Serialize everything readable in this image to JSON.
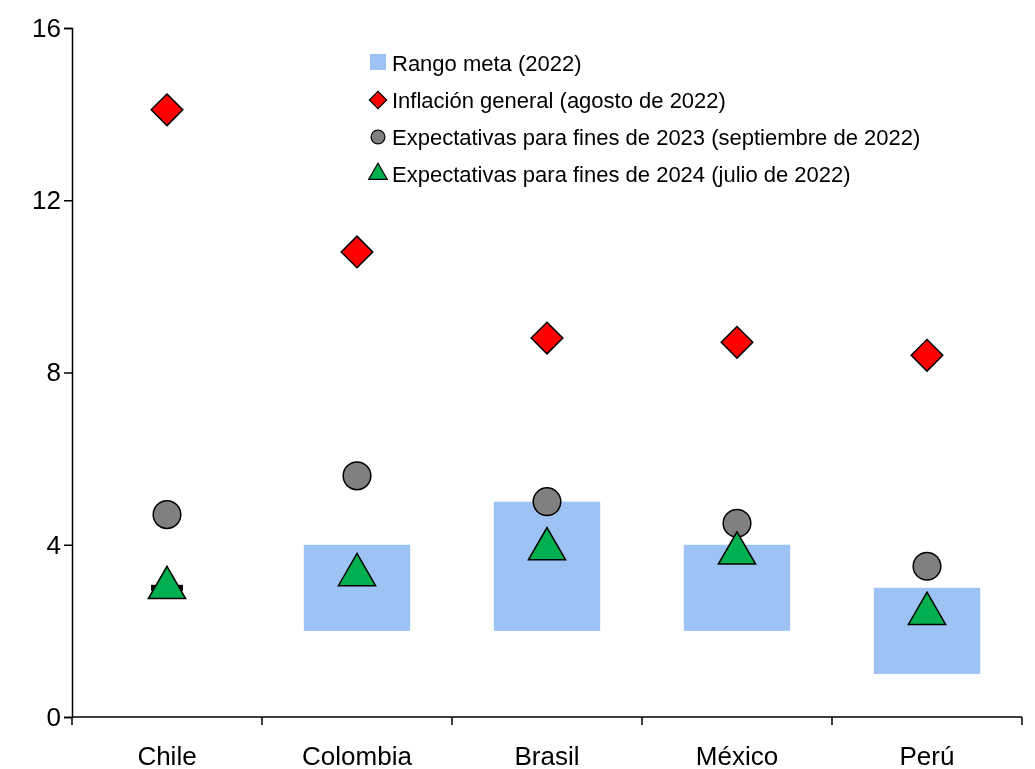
{
  "chart_data": {
    "type": "scatter",
    "categories": [
      "Chile",
      "Colombia",
      "Brasil",
      "México",
      "Perú"
    ],
    "ylim": [
      0,
      16
    ],
    "yticks": [
      0,
      4,
      8,
      12,
      16
    ],
    "grid": false,
    "legend": "top right",
    "series": [
      {
        "name": "Rango meta (2022)",
        "type": "bar",
        "color": "#9dc3f5",
        "colors": [
          "#000000",
          "#9dc3f5",
          "#9dc3f5",
          "#9dc3f5",
          "#9dc3f5"
        ],
        "base": [
          3,
          2,
          2,
          2,
          1
        ],
        "values": [
          0,
          2,
          3,
          2,
          2
        ]
      },
      {
        "name": "Inflación general (agosto de 2022)",
        "marker": "diamond",
        "color": "#ff0000",
        "values": [
          14.1,
          10.8,
          8.8,
          8.7,
          8.4
        ]
      },
      {
        "name": "Expectativas para fines de 2023 (septiembre de 2022)",
        "marker": "circle",
        "color": "#808080",
        "values": [
          4.7,
          5.6,
          5.0,
          4.5,
          3.5
        ]
      },
      {
        "name": "Expectativas para fines de 2024 (julio de 2022)",
        "marker": "triangle",
        "color": "#00b050",
        "values": [
          3.0,
          3.3,
          3.9,
          3.8,
          2.4
        ]
      }
    ]
  }
}
